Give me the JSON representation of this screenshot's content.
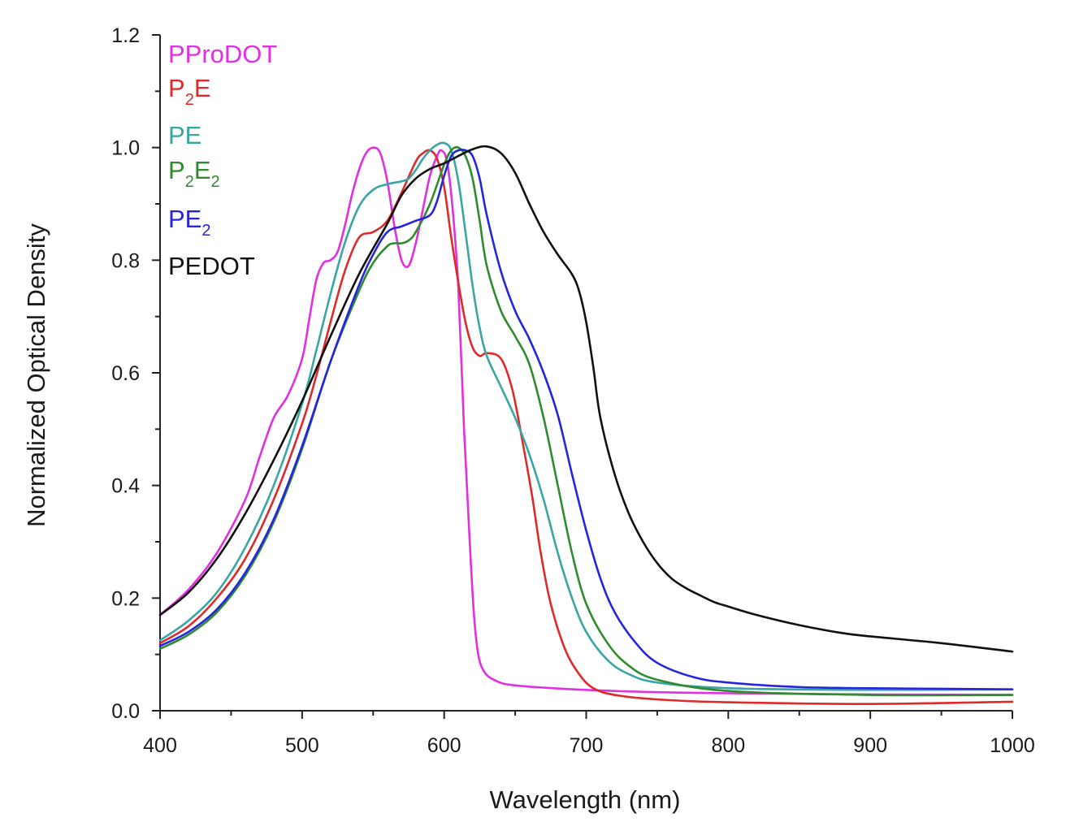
{
  "chart_data": {
    "type": "line",
    "xlabel": "Wavelength (nm)",
    "ylabel": "Normalized Optical Density",
    "xlim": [
      400,
      1000
    ],
    "ylim": [
      0,
      1.2
    ],
    "x_ticks": [
      "400",
      "500",
      "600",
      "700",
      "800",
      "900",
      "1000"
    ],
    "y_ticks": [
      "0.0",
      "0.2",
      "0.4",
      "0.6",
      "0.8",
      "1.0",
      "1.2"
    ],
    "grid": false,
    "legend_position": "top-left",
    "series": [
      {
        "name": "PProDOT",
        "legend": [
          {
            "t": "PProDOT",
            "sub": false
          }
        ],
        "color": "#e030e0",
        "points": [
          [
            400,
            0.17
          ],
          [
            420,
            0.215
          ],
          [
            440,
            0.28
          ],
          [
            460,
            0.375
          ],
          [
            470,
            0.45
          ],
          [
            480,
            0.52
          ],
          [
            490,
            0.56
          ],
          [
            500,
            0.625
          ],
          [
            505,
            0.695
          ],
          [
            510,
            0.765
          ],
          [
            515,
            0.795
          ],
          [
            520,
            0.8
          ],
          [
            525,
            0.815
          ],
          [
            530,
            0.86
          ],
          [
            535,
            0.915
          ],
          [
            540,
            0.96
          ],
          [
            545,
            0.99
          ],
          [
            550,
            1.0
          ],
          [
            555,
            0.99
          ],
          [
            560,
            0.94
          ],
          [
            565,
            0.86
          ],
          [
            570,
            0.8
          ],
          [
            575,
            0.79
          ],
          [
            580,
            0.83
          ],
          [
            585,
            0.89
          ],
          [
            590,
            0.95
          ],
          [
            595,
            0.985
          ],
          [
            598,
            0.995
          ],
          [
            602,
            0.975
          ],
          [
            606,
            0.89
          ],
          [
            610,
            0.75
          ],
          [
            614,
            0.5
          ],
          [
            618,
            0.3
          ],
          [
            621,
            0.17
          ],
          [
            624,
            0.1
          ],
          [
            628,
            0.07
          ],
          [
            635,
            0.055
          ],
          [
            650,
            0.045
          ],
          [
            700,
            0.037
          ],
          [
            750,
            0.033
          ],
          [
            800,
            0.031
          ],
          [
            900,
            0.029
          ],
          [
            1000,
            0.028
          ]
        ]
      },
      {
        "name": "P2E",
        "legend": [
          {
            "t": "P",
            "sub": false
          },
          {
            "t": "2",
            "sub": true
          },
          {
            "t": "E",
            "sub": false
          }
        ],
        "color": "#dd2a2a",
        "points": [
          [
            400,
            0.12
          ],
          [
            420,
            0.15
          ],
          [
            440,
            0.2
          ],
          [
            460,
            0.27
          ],
          [
            480,
            0.375
          ],
          [
            500,
            0.51
          ],
          [
            510,
            0.595
          ],
          [
            520,
            0.69
          ],
          [
            530,
            0.78
          ],
          [
            540,
            0.84
          ],
          [
            550,
            0.85
          ],
          [
            560,
            0.87
          ],
          [
            570,
            0.92
          ],
          [
            580,
            0.975
          ],
          [
            585,
            0.99
          ],
          [
            590,
            0.995
          ],
          [
            595,
            0.98
          ],
          [
            600,
            0.93
          ],
          [
            605,
            0.84
          ],
          [
            610,
            0.76
          ],
          [
            615,
            0.69
          ],
          [
            620,
            0.645
          ],
          [
            625,
            0.63
          ],
          [
            630,
            0.635
          ],
          [
            640,
            0.625
          ],
          [
            648,
            0.57
          ],
          [
            655,
            0.48
          ],
          [
            662,
            0.38
          ],
          [
            668,
            0.28
          ],
          [
            675,
            0.19
          ],
          [
            685,
            0.11
          ],
          [
            695,
            0.065
          ],
          [
            705,
            0.04
          ],
          [
            720,
            0.028
          ],
          [
            750,
            0.02
          ],
          [
            800,
            0.015
          ],
          [
            900,
            0.012
          ],
          [
            1000,
            0.016
          ]
        ]
      },
      {
        "name": "PE",
        "legend": [
          {
            "t": "PE",
            "sub": false
          }
        ],
        "color": "#3aa5a5",
        "points": [
          [
            400,
            0.125
          ],
          [
            420,
            0.16
          ],
          [
            440,
            0.21
          ],
          [
            460,
            0.29
          ],
          [
            480,
            0.4
          ],
          [
            500,
            0.545
          ],
          [
            510,
            0.64
          ],
          [
            520,
            0.74
          ],
          [
            530,
            0.83
          ],
          [
            540,
            0.895
          ],
          [
            550,
            0.925
          ],
          [
            560,
            0.935
          ],
          [
            570,
            0.94
          ],
          [
            575,
            0.945
          ],
          [
            580,
            0.96
          ],
          [
            585,
            0.98
          ],
          [
            590,
            0.995
          ],
          [
            595,
            1.005
          ],
          [
            600,
            1.008
          ],
          [
            605,
            0.995
          ],
          [
            610,
            0.94
          ],
          [
            615,
            0.85
          ],
          [
            620,
            0.755
          ],
          [
            625,
            0.68
          ],
          [
            630,
            0.63
          ],
          [
            640,
            0.575
          ],
          [
            650,
            0.52
          ],
          [
            660,
            0.455
          ],
          [
            670,
            0.375
          ],
          [
            680,
            0.28
          ],
          [
            690,
            0.2
          ],
          [
            700,
            0.14
          ],
          [
            715,
            0.09
          ],
          [
            730,
            0.065
          ],
          [
            750,
            0.05
          ],
          [
            800,
            0.04
          ],
          [
            900,
            0.037
          ],
          [
            1000,
            0.038
          ]
        ]
      },
      {
        "name": "P2E2",
        "legend": [
          {
            "t": "P",
            "sub": false
          },
          {
            "t": "2",
            "sub": true
          },
          {
            "t": "E",
            "sub": false
          },
          {
            "t": "2",
            "sub": true
          }
        ],
        "color": "#2e8b2e",
        "points": [
          [
            400,
            0.11
          ],
          [
            420,
            0.135
          ],
          [
            440,
            0.175
          ],
          [
            460,
            0.24
          ],
          [
            480,
            0.335
          ],
          [
            500,
            0.465
          ],
          [
            520,
            0.62
          ],
          [
            540,
            0.745
          ],
          [
            550,
            0.795
          ],
          [
            560,
            0.825
          ],
          [
            565,
            0.83
          ],
          [
            570,
            0.83
          ],
          [
            575,
            0.835
          ],
          [
            580,
            0.85
          ],
          [
            590,
            0.9
          ],
          [
            600,
            0.97
          ],
          [
            605,
            0.995
          ],
          [
            610,
            1.0
          ],
          [
            615,
            0.985
          ],
          [
            620,
            0.945
          ],
          [
            625,
            0.87
          ],
          [
            630,
            0.79
          ],
          [
            640,
            0.71
          ],
          [
            650,
            0.665
          ],
          [
            660,
            0.615
          ],
          [
            670,
            0.52
          ],
          [
            680,
            0.4
          ],
          [
            690,
            0.28
          ],
          [
            700,
            0.19
          ],
          [
            715,
            0.12
          ],
          [
            730,
            0.08
          ],
          [
            750,
            0.055
          ],
          [
            800,
            0.035
          ],
          [
            900,
            0.028
          ],
          [
            1000,
            0.028
          ]
        ]
      },
      {
        "name": "PE2",
        "legend": [
          {
            "t": "PE",
            "sub": false
          },
          {
            "t": "2",
            "sub": true
          }
        ],
        "color": "#2525dd",
        "points": [
          [
            400,
            0.115
          ],
          [
            420,
            0.14
          ],
          [
            440,
            0.18
          ],
          [
            460,
            0.245
          ],
          [
            480,
            0.34
          ],
          [
            500,
            0.47
          ],
          [
            520,
            0.62
          ],
          [
            540,
            0.755
          ],
          [
            550,
            0.81
          ],
          [
            560,
            0.85
          ],
          [
            570,
            0.86
          ],
          [
            580,
            0.87
          ],
          [
            590,
            0.88
          ],
          [
            595,
            0.905
          ],
          [
            600,
            0.95
          ],
          [
            605,
            0.985
          ],
          [
            610,
            0.995
          ],
          [
            615,
            0.995
          ],
          [
            620,
            0.985
          ],
          [
            625,
            0.945
          ],
          [
            630,
            0.88
          ],
          [
            640,
            0.78
          ],
          [
            650,
            0.71
          ],
          [
            660,
            0.66
          ],
          [
            670,
            0.6
          ],
          [
            680,
            0.525
          ],
          [
            690,
            0.42
          ],
          [
            700,
            0.32
          ],
          [
            710,
            0.235
          ],
          [
            720,
            0.175
          ],
          [
            735,
            0.12
          ],
          [
            750,
            0.085
          ],
          [
            775,
            0.06
          ],
          [
            800,
            0.05
          ],
          [
            850,
            0.042
          ],
          [
            900,
            0.04
          ],
          [
            1000,
            0.038
          ]
        ]
      },
      {
        "name": "PEDOT",
        "legend": [
          {
            "t": "PEDOT",
            "sub": false
          }
        ],
        "color": "#111111",
        "points": [
          [
            400,
            0.17
          ],
          [
            420,
            0.21
          ],
          [
            440,
            0.27
          ],
          [
            460,
            0.35
          ],
          [
            480,
            0.445
          ],
          [
            500,
            0.55
          ],
          [
            520,
            0.665
          ],
          [
            540,
            0.775
          ],
          [
            560,
            0.865
          ],
          [
            570,
            0.915
          ],
          [
            580,
            0.945
          ],
          [
            590,
            0.962
          ],
          [
            600,
            0.972
          ],
          [
            610,
            0.985
          ],
          [
            620,
            0.997
          ],
          [
            630,
            1.002
          ],
          [
            640,
            0.99
          ],
          [
            650,
            0.955
          ],
          [
            660,
            0.9
          ],
          [
            670,
            0.85
          ],
          [
            680,
            0.81
          ],
          [
            690,
            0.775
          ],
          [
            695,
            0.745
          ],
          [
            700,
            0.69
          ],
          [
            705,
            0.61
          ],
          [
            710,
            0.52
          ],
          [
            720,
            0.42
          ],
          [
            730,
            0.35
          ],
          [
            740,
            0.3
          ],
          [
            750,
            0.262
          ],
          [
            760,
            0.235
          ],
          [
            770,
            0.218
          ],
          [
            780,
            0.205
          ],
          [
            790,
            0.193
          ],
          [
            800,
            0.185
          ],
          [
            820,
            0.17
          ],
          [
            850,
            0.152
          ],
          [
            880,
            0.138
          ],
          [
            900,
            0.132
          ],
          [
            950,
            0.12
          ],
          [
            1000,
            0.105
          ]
        ]
      }
    ]
  }
}
